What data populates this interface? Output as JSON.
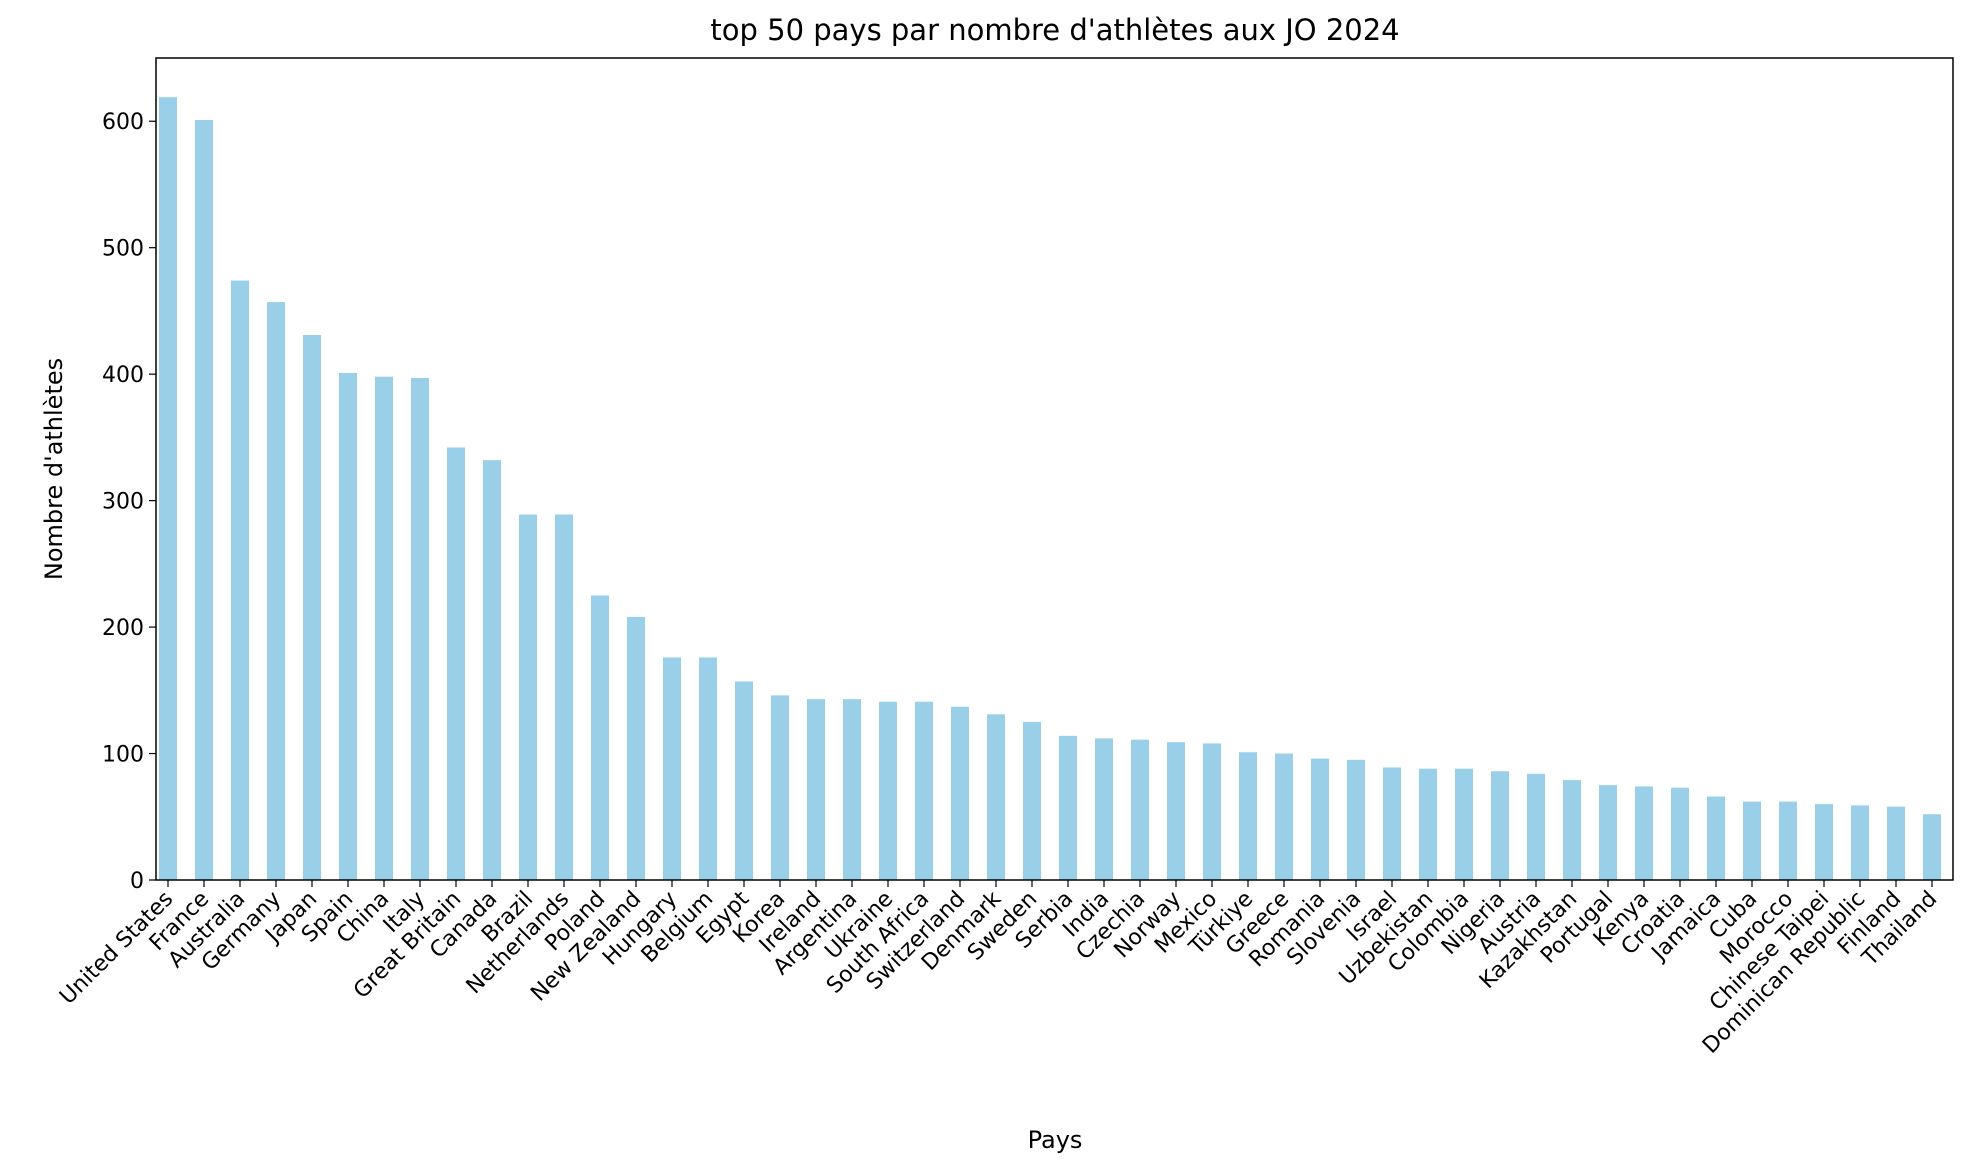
{
  "chart_data": {
    "type": "bar",
    "title": "top 50 pays par nombre d'athlètes aux JO 2024",
    "xlabel": "Pays",
    "ylabel": "Nombre d'athlètes",
    "ylim": [
      0,
      650
    ],
    "yticks": [
      0,
      100,
      200,
      300,
      400,
      500,
      600
    ],
    "grid": false,
    "bar_color": "#99cfe8",
    "categories": [
      "United States",
      "France",
      "Australia",
      "Germany",
      "Japan",
      "Spain",
      "China",
      "Italy",
      "Great Britain",
      "Canada",
      "Brazil",
      "Netherlands",
      "Poland",
      "New Zealand",
      "Hungary",
      "Belgium",
      "Egypt",
      "Korea",
      "Ireland",
      "Argentina",
      "Ukraine",
      "South Africa",
      "Switzerland",
      "Denmark",
      "Sweden",
      "Serbia",
      "India",
      "Czechia",
      "Norway",
      "Mexico",
      "Türkiye",
      "Greece",
      "Romania",
      "Slovenia",
      "Israel",
      "Uzbekistan",
      "Colombia",
      "Nigeria",
      "Austria",
      "Kazakhstan",
      "Portugal",
      "Kenya",
      "Croatia",
      "Jamaica",
      "Cuba",
      "Morocco",
      "Chinese Taipei",
      "Dominican Republic",
      "Finland",
      "Thailand"
    ],
    "values": [
      619,
      601,
      474,
      457,
      431,
      401,
      398,
      397,
      342,
      332,
      289,
      289,
      225,
      208,
      176,
      176,
      157,
      146,
      143,
      143,
      141,
      141,
      137,
      131,
      125,
      114,
      112,
      111,
      109,
      108,
      101,
      100,
      96,
      95,
      89,
      88,
      88,
      86,
      84,
      79,
      75,
      74,
      73,
      66,
      62,
      62,
      60,
      59,
      58,
      52
    ]
  }
}
